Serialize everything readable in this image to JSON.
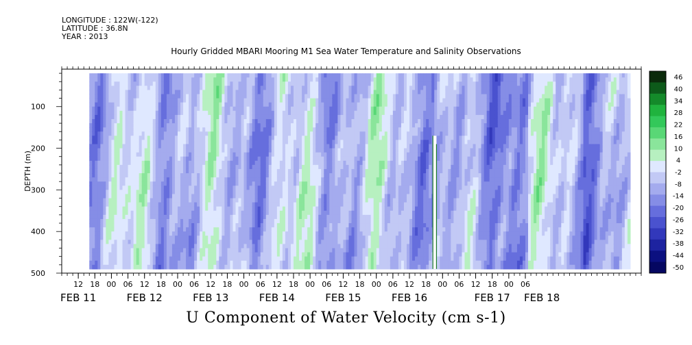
{
  "header": {
    "longitude": "LONGITUDE : 122W(-122)",
    "latitude": "LATITUDE : 36.8N",
    "year": "YEAR : 2013"
  },
  "chart_data": {
    "type": "heatmap",
    "title": "Hourly Gridded MBARI Mooring M1 Sea Water Temperature and Salinity Observations",
    "xlabel": "U Component of Water Velocity (cm s-1)",
    "ylabel": "DEPTH (m)",
    "ylim": [
      500,
      10
    ],
    "y_ticks": [
      100,
      200,
      300,
      400,
      500
    ],
    "x_range_hours_from_feb11_00": [
      6,
      216
    ],
    "x_hour_ticks": [
      "12",
      "18",
      "00",
      "06",
      "12",
      "18",
      "00",
      "06",
      "12",
      "18",
      "00",
      "06",
      "12",
      "18",
      "00",
      "06",
      "12",
      "18",
      "00",
      "06",
      "12",
      "18",
      "00",
      "06",
      "12",
      "18",
      "00",
      "06"
    ],
    "x_day_labels": [
      {
        "label": "FEB 11",
        "hour": 12
      },
      {
        "label": "FEB 12",
        "hour": 36
      },
      {
        "label": "FEB 13",
        "hour": 60
      },
      {
        "label": "FEB 14",
        "hour": 84
      },
      {
        "label": "FEB 15",
        "hour": 108
      },
      {
        "label": "FEB 16",
        "hour": 132
      },
      {
        "label": "FEB 17",
        "hour": 162
      },
      {
        "label": "FEB 18",
        "hour": 180
      }
    ],
    "data_extent_hours": [
      16,
      212
    ],
    "data_extent_depth": [
      20,
      490
    ],
    "colorbar_levels": [
      "46",
      "40",
      "34",
      "28",
      "22",
      "16",
      "10",
      "4",
      "-2",
      "-8",
      "-14",
      "-20",
      "-26",
      "-32",
      "-38",
      "-44",
      "-50"
    ],
    "colormap": [
      "#0b2a0b",
      "#0d5a1a",
      "#148a2a",
      "#20b33e",
      "#33c85a",
      "#59d776",
      "#8ae59b",
      "#b7f0c0",
      "#dfe8ff",
      "#c2c9f5",
      "#a4abee",
      "#858de6",
      "#666edd",
      "#4a52cf",
      "#3238bb",
      "#1d23a0",
      "#0b1080",
      "#050761"
    ],
    "color_range": [
      -50,
      52
    ]
  }
}
